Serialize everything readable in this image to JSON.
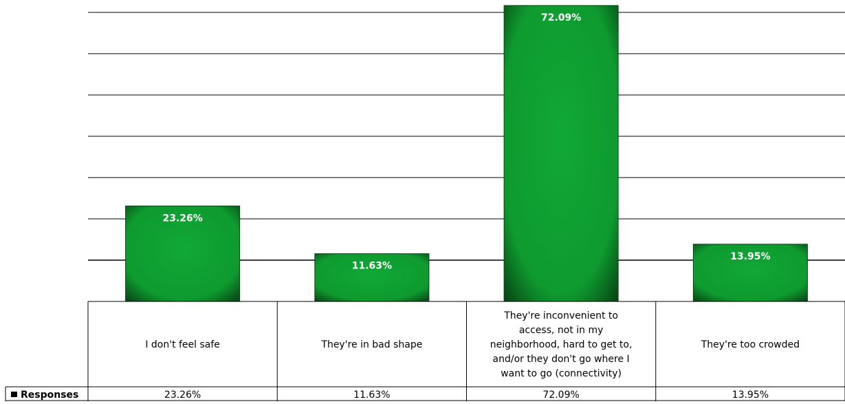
{
  "chart_data": {
    "type": "bar",
    "categories": [
      "I don't feel safe",
      "They're in bad shape",
      "They're inconvenient to access, not in my neighborhood, hard to get to, and/or they don't go where I want to go (connectivity)",
      "They're too crowded"
    ],
    "category_label_lines": [
      [
        "I don't feel safe"
      ],
      [
        "They're in bad shape"
      ],
      [
        "They're inconvenient to",
        "access, not in my",
        "neighborhood, hard to get to,",
        "and/or they don't go where I",
        "want to go (connectivity)"
      ],
      [
        "They're too crowded"
      ]
    ],
    "series": [
      {
        "name": "Responses",
        "values": [
          23.26,
          11.63,
          72.09,
          13.95
        ]
      }
    ],
    "data_labels": [
      "23.26%",
      "11.63%",
      "72.09%",
      "13.95%"
    ],
    "table_values": [
      "23.26%",
      "11.63%",
      "72.09%",
      "13.95%"
    ],
    "legend_label": "Responses",
    "ylim": [
      0,
      72.09
    ],
    "grid": true,
    "data_table": true,
    "colors": {
      "bar": "#0f9d30",
      "bar_glow": "#0a3d12",
      "grid": "#000000"
    }
  }
}
